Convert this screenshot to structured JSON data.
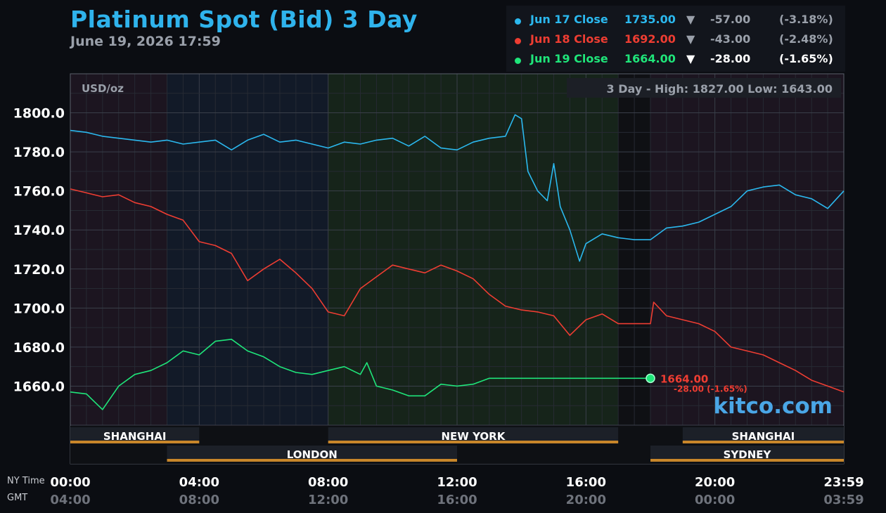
{
  "header": {
    "title": "Platinum Spot (Bid) 3 Day",
    "subtitle": "June 19, 2026 17:59"
  },
  "legend": [
    {
      "label": "Jun 17 Close",
      "close": "1735.00",
      "arrow": "▼",
      "change": "-57.00",
      "pct": "(-3.18%)",
      "color": "#2bb8ee",
      "text_color": "#9aa0aa"
    },
    {
      "label": "Jun 18 Close",
      "close": "1692.00",
      "arrow": "▼",
      "change": "-43.00",
      "pct": "(-2.48%)",
      "color": "#ee3d32",
      "text_color": "#9aa0aa"
    },
    {
      "label": "Jun 19 Close",
      "close": "1664.00",
      "arrow": "▼",
      "change": "-28.00",
      "pct": "(-1.65%)",
      "color": "#1fe57a",
      "text_color": "#ffffff"
    }
  ],
  "chart_info": {
    "unit": "USD/oz",
    "range_text": "3 Day - High: 1827.00  Low: 1643.00",
    "watermark": "kitco.com",
    "last_price": "1664.00",
    "last_change": "-28.00 (-1.65%)"
  },
  "sessions": [
    {
      "name": "SHANGHAI",
      "start": 0,
      "end": 4,
      "row": 1
    },
    {
      "name": "NEW YORK",
      "start": 8,
      "end": 17,
      "row": 1
    },
    {
      "name": "SHANGHAI",
      "start": 19,
      "end": 24,
      "row": 1
    },
    {
      "name": "LONDON",
      "start": 3,
      "end": 12,
      "row": 2
    },
    {
      "name": "SYDNEY",
      "start": 18,
      "end": 24,
      "row": 2
    }
  ],
  "time_axis": {
    "row1_label": "NY Time",
    "row2_label": "GMT",
    "ny": [
      "00:00",
      "04:00",
      "08:00",
      "12:00",
      "16:00",
      "20:00",
      "23:59"
    ],
    "gmt": [
      "04:00",
      "08:00",
      "12:00",
      "16:00",
      "20:00",
      "00:00",
      "03:59"
    ]
  },
  "colors": {
    "jun17": "#2bb8ee",
    "jun18": "#ee3d32",
    "jun19": "#1fe57a",
    "session_bar": "#c8862a",
    "title": "#2fb3ec"
  },
  "chart_data": {
    "type": "line",
    "xlabel": "",
    "ylabel": "USD/oz",
    "ylim": [
      1640,
      1820
    ],
    "xlim": [
      0,
      24
    ],
    "yticks": [
      "1660.0",
      "1680.0",
      "1700.0",
      "1720.0",
      "1740.0",
      "1760.0",
      "1780.0",
      "1800.0"
    ],
    "ytick_values": [
      1660,
      1680,
      1700,
      1720,
      1740,
      1760,
      1780,
      1800
    ],
    "grid": true,
    "series": [
      {
        "name": "Jun 17 Close",
        "color": "#2bb8ee",
        "x": [
          0,
          0.5,
          1,
          1.5,
          2,
          2.5,
          3,
          3.5,
          4,
          4.5,
          5,
          5.5,
          6,
          6.5,
          7,
          7.5,
          8,
          8.5,
          9,
          9.5,
          10,
          10.5,
          11,
          11.5,
          12,
          12.5,
          13,
          13.5,
          13.8,
          14,
          14.2,
          14.5,
          14.8,
          15,
          15.2,
          15.5,
          15.8,
          16,
          16.5,
          17,
          17.5,
          18,
          18.5,
          19,
          19.5,
          20,
          20.5,
          21,
          21.5,
          22,
          22.5,
          23,
          23.5,
          24
        ],
        "y": [
          1791,
          1790,
          1788,
          1787,
          1786,
          1785,
          1786,
          1784,
          1785,
          1786,
          1781,
          1786,
          1789,
          1785,
          1786,
          1784,
          1782,
          1785,
          1784,
          1786,
          1787,
          1783,
          1788,
          1782,
          1781,
          1785,
          1787,
          1788,
          1799,
          1797,
          1770,
          1760,
          1755,
          1774,
          1752,
          1740,
          1724,
          1733,
          1738,
          1736,
          1735,
          1735,
          1741,
          1742,
          1744,
          1748,
          1752,
          1760,
          1762,
          1763,
          1758,
          1756,
          1751,
          1760
        ]
      },
      {
        "name": "Jun 18 Close",
        "color": "#ee3d32",
        "x": [
          0,
          0.5,
          1,
          1.5,
          2,
          2.5,
          3,
          3.5,
          4,
          4.5,
          5,
          5.5,
          6,
          6.5,
          7,
          7.5,
          8,
          8.5,
          9,
          9.5,
          10,
          10.5,
          11,
          11.5,
          12,
          12.5,
          13,
          13.5,
          14,
          14.5,
          15,
          15.5,
          16,
          16.5,
          17,
          17.5,
          18,
          18.1,
          18.5,
          19,
          19.5,
          20,
          20.5,
          21,
          21.5,
          22,
          22.5,
          23,
          23.5,
          24
        ],
        "y": [
          1761,
          1759,
          1757,
          1758,
          1754,
          1752,
          1748,
          1745,
          1734,
          1732,
          1728,
          1714,
          1720,
          1725,
          1718,
          1710,
          1698,
          1696,
          1710,
          1716,
          1722,
          1720,
          1718,
          1722,
          1719,
          1715,
          1707,
          1701,
          1699,
          1698,
          1696,
          1686,
          1694,
          1697,
          1692,
          1692,
          1692,
          1703,
          1696,
          1694,
          1692,
          1688,
          1680,
          1678,
          1676,
          1672,
          1668,
          1663,
          1660,
          1657
        ]
      },
      {
        "name": "Jun 19 Close",
        "color": "#1fe57a",
        "x": [
          0,
          0.5,
          1,
          1.5,
          2,
          2.5,
          3,
          3.5,
          4,
          4.5,
          5,
          5.5,
          6,
          6.5,
          7,
          7.5,
          8,
          8.5,
          9,
          9.2,
          9.5,
          10,
          10.5,
          11,
          11.5,
          12,
          12.5,
          13,
          14,
          15,
          16,
          17,
          18
        ],
        "y": [
          1657,
          1656,
          1648,
          1660,
          1666,
          1668,
          1672,
          1678,
          1676,
          1683,
          1684,
          1678,
          1675,
          1670,
          1667,
          1666,
          1668,
          1670,
          1666,
          1672,
          1660,
          1658,
          1655,
          1655,
          1661,
          1660,
          1661,
          1664,
          1664,
          1664,
          1664,
          1664,
          1664
        ]
      }
    ]
  }
}
